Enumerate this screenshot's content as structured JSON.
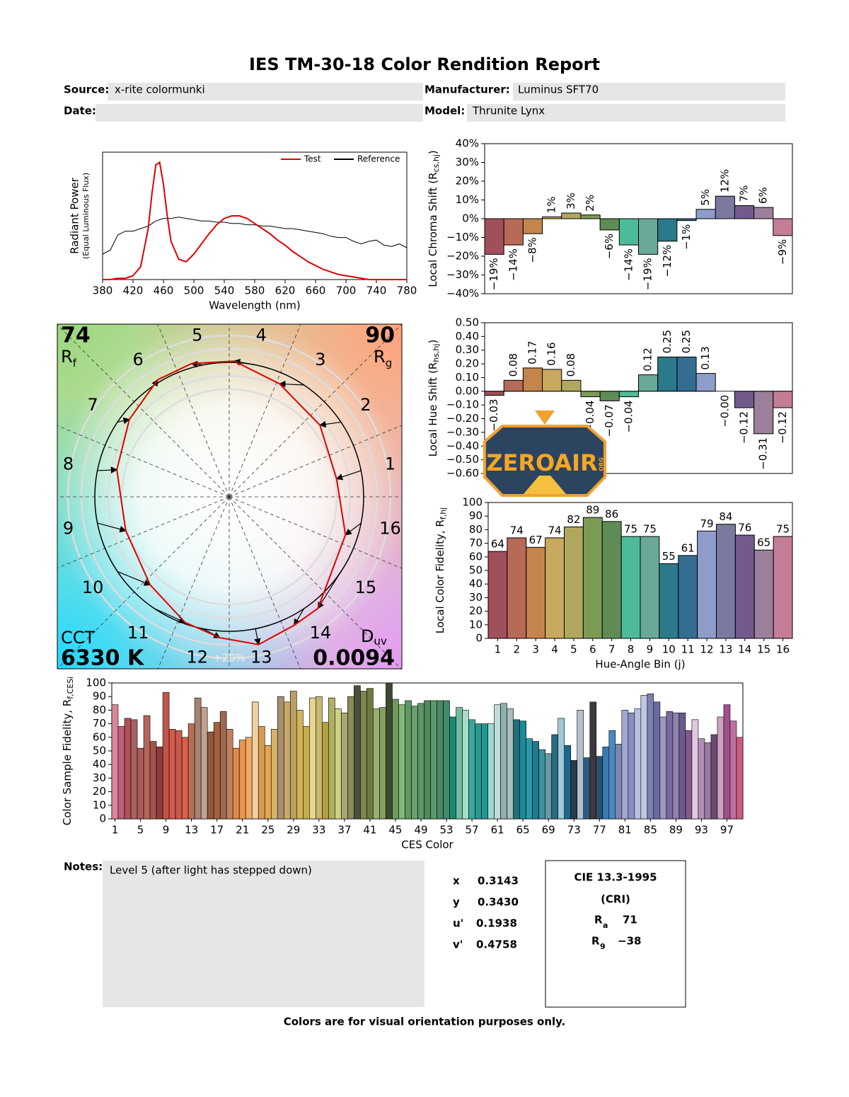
{
  "header": {
    "title": "IES TM-30-18 Color Rendition Report",
    "source_label": "Source:",
    "source": "x-rite colormunki",
    "manufacturer_label": "Manufacturer:",
    "manufacturer": "Luminus SFT70",
    "date_label": "Date:",
    "model_label": "Model:",
    "model": "Thrunite Lynx"
  },
  "chart_data": [
    {
      "type": "line",
      "xlabel": "Wavelength (nm)",
      "ylabel": "Radiant Power",
      "ylabel_note": "(Equal Luminous Flux)",
      "legend": "upper right",
      "x": [
        380,
        390,
        400,
        410,
        420,
        430,
        440,
        445,
        450,
        455,
        460,
        465,
        470,
        480,
        490,
        500,
        510,
        520,
        530,
        540,
        550,
        560,
        570,
        580,
        590,
        600,
        610,
        620,
        630,
        640,
        650,
        660,
        670,
        680,
        690,
        700,
        710,
        720,
        730,
        740,
        750,
        760,
        770,
        780
      ],
      "series": [
        {
          "name": "Test",
          "color": "#e00000",
          "values": [
            0,
            0,
            0.01,
            0.01,
            0.03,
            0.1,
            0.4,
            0.68,
            0.9,
            0.92,
            0.75,
            0.5,
            0.3,
            0.16,
            0.14,
            0.2,
            0.28,
            0.36,
            0.43,
            0.48,
            0.5,
            0.5,
            0.48,
            0.44,
            0.4,
            0.36,
            0.31,
            0.27,
            0.22,
            0.18,
            0.14,
            0.11,
            0.08,
            0.06,
            0.04,
            0.03,
            0.02,
            0.01,
            0,
            0,
            0,
            0,
            0,
            0
          ]
        },
        {
          "name": "Reference",
          "color": "#000000",
          "values": [
            0.2,
            0.23,
            0.35,
            0.38,
            0.38,
            0.4,
            0.42,
            0.44,
            0.46,
            0.47,
            0.48,
            0.48,
            0.48,
            0.49,
            0.48,
            0.47,
            0.46,
            0.46,
            0.45,
            0.45,
            0.44,
            0.44,
            0.43,
            0.43,
            0.42,
            0.42,
            0.41,
            0.4,
            0.4,
            0.39,
            0.38,
            0.37,
            0.36,
            0.34,
            0.33,
            0.33,
            0.3,
            0.28,
            0.3,
            0.31,
            0.27,
            0.26,
            0.28,
            0.25
          ]
        }
      ],
      "xlim": [
        380,
        780
      ],
      "ylim": [
        0,
        1
      ],
      "xticks": [
        380,
        420,
        460,
        500,
        540,
        580,
        620,
        660,
        700,
        740,
        780
      ]
    },
    {
      "type": "bar",
      "ylabel": "Local Chroma Shift (R",
      "ylabel_sub": "cs,hj",
      "ylabel_end": ")",
      "values": [
        -19,
        -14,
        -8,
        1,
        3,
        2,
        -6,
        -14,
        -19,
        -12,
        -1,
        5,
        12,
        7,
        6,
        -9
      ],
      "value_labels": [
        "−19%",
        "−14%",
        "−8%",
        "1%",
        "3%",
        "2%",
        "−6%",
        "−14%",
        "−19%",
        "−12%",
        "−1%",
        "5%",
        "12%",
        "7%",
        "6%",
        "−9%"
      ],
      "colors": [
        "#a0505a",
        "#b86a58",
        "#c4854d",
        "#c9a860",
        "#b0a85f",
        "#7d9a55",
        "#5f8c55",
        "#4dbb99",
        "#6aa89a",
        "#2a7a8c",
        "#336d92",
        "#8d9cc9",
        "#7a7aa0",
        "#735a8e",
        "#9c7f9a",
        "#c47d96"
      ],
      "ylim": [
        -40,
        40
      ],
      "yticks": [
        {
          "value": 40,
          "label": "40%"
        },
        {
          "value": 30,
          "label": "30%"
        },
        {
          "value": 20,
          "label": "20%"
        },
        {
          "value": 10,
          "label": "10%"
        },
        {
          "value": 0,
          "label": "0%"
        },
        {
          "value": -10,
          "label": "−10%"
        },
        {
          "value": -20,
          "label": "−20%"
        },
        {
          "value": -30,
          "label": "−30%"
        },
        {
          "value": -40,
          "label": "−40%"
        }
      ]
    },
    {
      "type": "bar",
      "ylabel": "Local Hue Shift (R",
      "ylabel_sub": "hs,hj",
      "ylabel_end": ")",
      "values": [
        -0.03,
        0.08,
        0.17,
        0.16,
        0.08,
        -0.04,
        -0.07,
        -0.04,
        0.12,
        0.25,
        0.25,
        0.13,
        0,
        -0.12,
        -0.31,
        -0.12
      ],
      "value_labels": [
        "−0.03",
        "0.08",
        "0.17",
        "0.16",
        "0.08",
        "−0.04",
        "−0.07",
        "−0.04",
        "0.12",
        "0.25",
        "0.25",
        "0.13",
        "−0.00",
        "−0.12",
        "−0.31",
        "−0.12"
      ],
      "colors": [
        "#a0505a",
        "#b86a58",
        "#c4854d",
        "#c9a860",
        "#b0a85f",
        "#7d9a55",
        "#5f8c55",
        "#4dbb99",
        "#6aa89a",
        "#2a7a8c",
        "#336d92",
        "#8d9cc9",
        "#7a7aa0",
        "#735a8e",
        "#9c7f9a",
        "#c47d96"
      ],
      "ylim": [
        -0.6,
        0.5
      ],
      "yticks": [
        {
          "value": 0.5,
          "label": "0.50"
        },
        {
          "value": 0.4,
          "label": "0.40"
        },
        {
          "value": 0.3,
          "label": "0.30"
        },
        {
          "value": 0.2,
          "label": "0.20"
        },
        {
          "value": 0.1,
          "label": "0.10"
        },
        {
          "value": 0,
          "label": "0.00"
        },
        {
          "value": -0.1,
          "label": "−0.10"
        },
        {
          "value": -0.2,
          "label": "−0.20"
        },
        {
          "value": -0.3,
          "label": "−0.30"
        },
        {
          "value": -0.4,
          "label": "−0.40"
        },
        {
          "value": -0.5,
          "label": "−0.50"
        },
        {
          "value": -0.6,
          "label": "−0.60"
        }
      ]
    },
    {
      "type": "bar",
      "ylabel": "Local Color Fidelity, R",
      "ylabel_sub": "f,hj",
      "xlabel": "Hue-Angle Bin (j)",
      "categories": [
        1,
        2,
        3,
        4,
        5,
        6,
        7,
        8,
        9,
        10,
        11,
        12,
        13,
        14,
        15,
        16
      ],
      "values": [
        64,
        74,
        67,
        74,
        82,
        89,
        86,
        75,
        75,
        55,
        61,
        79,
        84,
        76,
        65,
        75
      ],
      "colors": [
        "#a0505a",
        "#b86a58",
        "#c4854d",
        "#c9a860",
        "#b0a85f",
        "#7d9a55",
        "#5f8c55",
        "#4dbb99",
        "#6aa89a",
        "#2a7a8c",
        "#336d92",
        "#8d9cc9",
        "#7a7aa0",
        "#735a8e",
        "#9c7f9a",
        "#c47d96"
      ],
      "ylim": [
        0,
        100
      ],
      "yticks": [
        0,
        10,
        20,
        30,
        40,
        50,
        60,
        70,
        80,
        90,
        100
      ]
    },
    {
      "type": "bar",
      "ylabel": "Color Sample Fidelity, R",
      "ylabel_sub": "f,CESi",
      "xlabel": "CES Color",
      "categories": [
        1,
        null,
        null,
        null,
        5,
        null,
        null,
        null,
        9,
        null,
        null,
        null,
        13,
        null,
        null,
        null,
        17,
        null,
        null,
        null,
        21,
        null,
        null,
        null,
        25,
        null,
        null,
        null,
        29,
        null,
        null,
        null,
        33,
        null,
        null,
        null,
        37,
        null,
        null,
        null,
        41,
        null,
        null,
        null,
        45,
        null,
        null,
        null,
        49,
        null,
        null,
        null,
        53,
        null,
        null,
        null,
        57,
        null,
        null,
        null,
        61,
        null,
        null,
        null,
        65,
        null,
        null,
        null,
        69,
        null,
        null,
        null,
        73,
        null,
        null,
        null,
        77,
        null,
        null,
        null,
        81,
        null,
        null,
        null,
        85,
        null,
        null,
        null,
        89,
        null,
        null,
        null,
        93,
        null,
        null,
        null,
        97,
        null,
        null
      ],
      "values": [
        84,
        68,
        74,
        73,
        52,
        76,
        57,
        53,
        93,
        66,
        65,
        60,
        70,
        89,
        82,
        64,
        71,
        79,
        66,
        52,
        58,
        60,
        86,
        68,
        54,
        66,
        90,
        86,
        94,
        80,
        68,
        89,
        90,
        71,
        89,
        81,
        78,
        90,
        98,
        94,
        96,
        81,
        82,
        100,
        88,
        84,
        87,
        83,
        85,
        87,
        87,
        87,
        87,
        75,
        82,
        80,
        73,
        70,
        70,
        70,
        84,
        85,
        81,
        73,
        72,
        59,
        57,
        51,
        48,
        62,
        74,
        54,
        43,
        80,
        45,
        86,
        46,
        53,
        65,
        55,
        80,
        78,
        81,
        91,
        92,
        86,
        75,
        79,
        78,
        78,
        65,
        73,
        59,
        56,
        62,
        75,
        84,
        72,
        60
      ],
      "colors": [
        "#d9869a",
        "#c0607a",
        "#b05358",
        "#a86262",
        "#b05b5b",
        "#b5655d",
        "#a5544c",
        "#8e3d3d",
        "#c25548",
        "#d25a4b",
        "#c95a4f",
        "#d8604c",
        "#b86e55",
        "#a58373",
        "#c2a08e",
        "#8e5a3d",
        "#a5603d",
        "#9c6a50",
        "#c28060",
        "#e08a4a",
        "#e6964f",
        "#f2a960",
        "#f0d0a0",
        "#d99a50",
        "#e2a850",
        "#d7b36a",
        "#a69070",
        "#c9a86a",
        "#b8a060",
        "#d4b455",
        "#c6ad4f",
        "#e8d590",
        "#c8b870",
        "#b1a040",
        "#b0b060",
        "#cfcf88",
        "#a8a870",
        "#8c8c58",
        "#4e4e3c",
        "#7d8550",
        "#6f7a40",
        "#9ab070",
        "#84a060",
        "#3e4a30",
        "#6e9a5a",
        "#83b878",
        "#5e9a60",
        "#6aa070",
        "#5f9568",
        "#4f8a5c",
        "#5a9a6a",
        "#4a8a62",
        "#3e8c6c",
        "#1a8a78",
        "#70bba0",
        "#a9dcc8",
        "#3aa8a0",
        "#2a9890",
        "#1f9a90",
        "#a0d8d0",
        "#c0dcd8",
        "#90b0b0",
        "#a8bcbc",
        "#1f7078",
        "#1a8a9a",
        "#2a9aaa",
        "#1a7a90",
        "#3a90a0",
        "#6a9aa8",
        "#2a6a80",
        "#a0c8d8",
        "#1a6890",
        "#2a3a48",
        "#b0c0d0",
        "#2a5a80",
        "#3a3a40",
        "#2a5070",
        "#3a7ab0",
        "#4a88c0",
        "#7a88b0",
        "#a0a8d0",
        "#8890c0",
        "#b8c0e0",
        "#c0c8e0",
        "#7a80b0",
        "#6a6aa0",
        "#9a9ac0",
        "#7a6aa0",
        "#9080b0",
        "#6a5a90",
        "#805a88",
        "#e0c8e0",
        "#b090b8",
        "#9a7aa0",
        "#6a4a70",
        "#d0a0c0",
        "#a0508a",
        "#c070a0",
        "#d05a80"
      ],
      "ylim": [
        0,
        100
      ],
      "yticks": [
        0,
        10,
        20,
        30,
        40,
        50,
        60,
        70,
        80,
        90,
        100
      ]
    }
  ],
  "vector_graphic": {
    "bins": [
      1,
      2,
      3,
      4,
      5,
      6,
      7,
      8,
      9,
      10,
      11,
      12,
      13,
      14,
      15,
      16
    ],
    "rf": 74,
    "rf_symbol": "R",
    "rf_sub": "f",
    "rg": 90,
    "rg_symbol": "R",
    "rg_sub": "g",
    "cct_label": "CCT",
    "cct": "6330 K",
    "duv_symbol": "D",
    "duv_sub": "uv",
    "duv": "0.0094",
    "scale_label": "+20%"
  },
  "notes": {
    "label": "Notes:",
    "text": "Level 5 (after light has stepped down)"
  },
  "chromaticity": [
    {
      "label": "x",
      "value": "0.3143"
    },
    {
      "label": "y",
      "value": "0.3430"
    },
    {
      "label": "u'",
      "value": "0.1938"
    },
    {
      "label": "v'",
      "value": "0.4758"
    }
  ],
  "cri": {
    "title": "CIE 13.3-1995",
    "subtitle": "(CRI)",
    "ra_symbol": "R",
    "ra_sub": "a",
    "ra": "71",
    "r9_symbol": "R",
    "r9_sub": "9",
    "r9": "−38"
  },
  "logo": {
    "text": "ZEROAIR",
    "sub": "ORG"
  },
  "footer": "Colors are for visual orientation purposes only."
}
